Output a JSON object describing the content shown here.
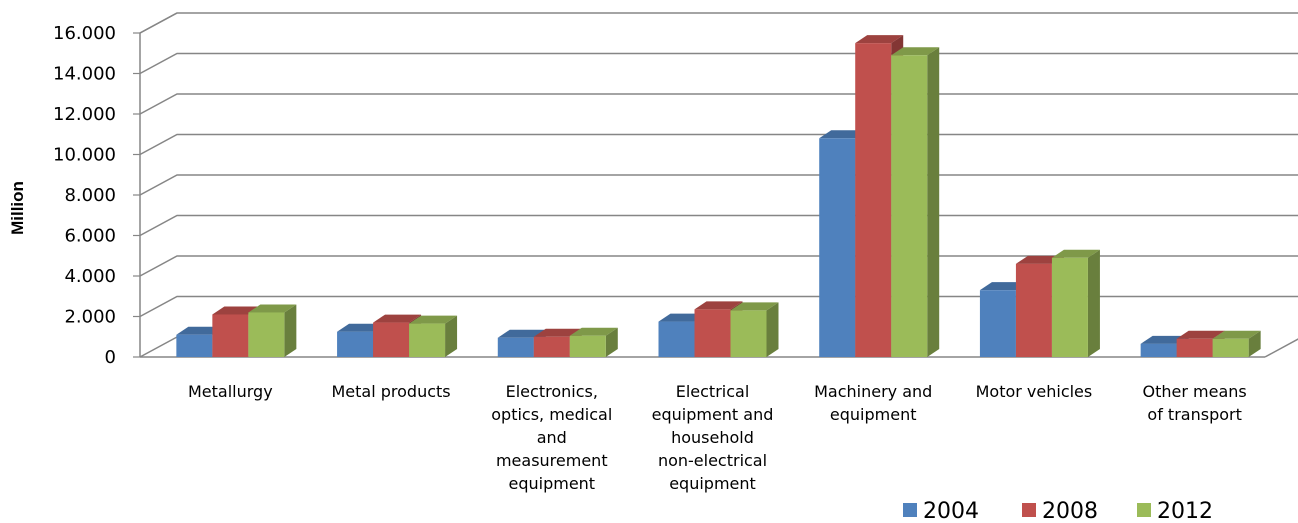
{
  "chart_data": {
    "type": "bar",
    "style": "3d-clustered-column",
    "categories": [
      [
        "Metallurgy"
      ],
      [
        "Metal products"
      ],
      [
        "Electronics,",
        "optics, medical",
        "and",
        "measurement",
        "equipment"
      ],
      [
        "Electrical",
        "equipment and",
        "household",
        "non-electrical",
        "equipment"
      ],
      [
        "Machinery and",
        "equipment"
      ],
      [
        "Motor vehicles"
      ],
      [
        "Other means",
        "of transport"
      ]
    ],
    "series": [
      {
        "name": "2004",
        "color": "#4F81BD",
        "values": [
          1100,
          1250,
          950,
          1750,
          10800,
          3300,
          650
        ]
      },
      {
        "name": "2008",
        "color": "#C0504D",
        "values": [
          2100,
          1700,
          1000,
          2350,
          15500,
          4600,
          900
        ]
      },
      {
        "name": "2012",
        "color": "#9BBB59",
        "values": [
          2200,
          1650,
          1050,
          2300,
          14900,
          4900,
          900
        ]
      }
    ],
    "ylabel": "Million",
    "ylim": [
      0,
      16000
    ],
    "yticks": [
      "0",
      "2.000",
      "4.000",
      "6.000",
      "8.000",
      "10.000",
      "12.000",
      "14.000",
      "16.000"
    ],
    "grid": true,
    "legend_position": "bottom-right"
  }
}
